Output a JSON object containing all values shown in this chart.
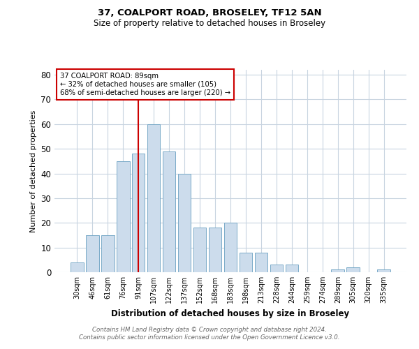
{
  "title1": "37, COALPORT ROAD, BROSELEY, TF12 5AN",
  "title2": "Size of property relative to detached houses in Broseley",
  "xlabel": "Distribution of detached houses by size in Broseley",
  "ylabel": "Number of detached properties",
  "categories": [
    "30sqm",
    "46sqm",
    "61sqm",
    "76sqm",
    "91sqm",
    "107sqm",
    "122sqm",
    "137sqm",
    "152sqm",
    "168sqm",
    "183sqm",
    "198sqm",
    "213sqm",
    "228sqm",
    "244sqm",
    "259sqm",
    "274sqm",
    "289sqm",
    "305sqm",
    "320sqm",
    "335sqm"
  ],
  "values": [
    4,
    15,
    15,
    45,
    48,
    60,
    49,
    40,
    18,
    18,
    20,
    8,
    8,
    3,
    3,
    0,
    0,
    1,
    2,
    0,
    1
  ],
  "bar_color": "#ccdcec",
  "bar_edge_color": "#7aaac8",
  "vline_x_idx": 4,
  "vline_color": "#cc0000",
  "annotation_text": "37 COALPORT ROAD: 89sqm\n← 32% of detached houses are smaller (105)\n68% of semi-detached houses are larger (220) →",
  "annotation_box_color": "white",
  "annotation_box_edge": "#cc0000",
  "ylim": [
    0,
    82
  ],
  "yticks": [
    0,
    10,
    20,
    30,
    40,
    50,
    60,
    70,
    80
  ],
  "footer": "Contains HM Land Registry data © Crown copyright and database right 2024.\nContains public sector information licensed under the Open Government Licence v3.0.",
  "background_color": "white",
  "grid_color": "#c8d4e0",
  "title1_fontsize": 9.5,
  "title2_fontsize": 8.5
}
